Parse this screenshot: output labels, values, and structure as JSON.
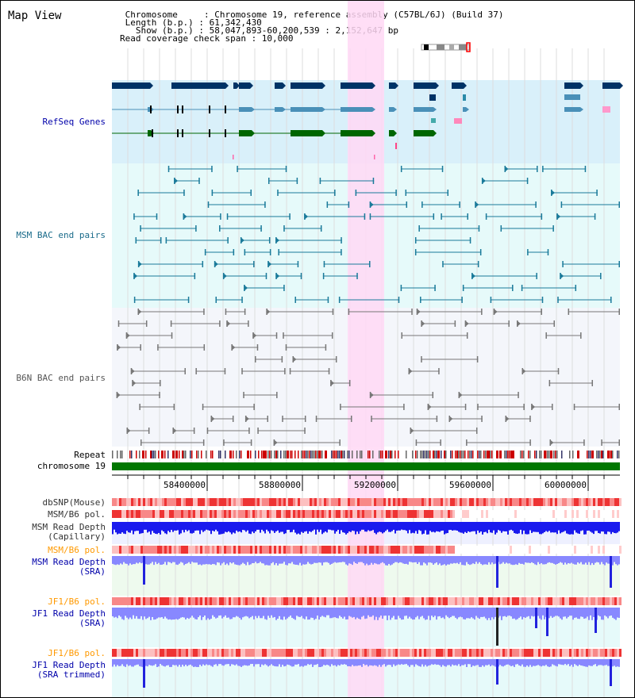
{
  "header": {
    "title": "Map View",
    "info_lines": [
      " Chromosome     : Chromosome 19, reference assembly (C57BL/6J) (Build 37)",
      " Length (b.p.) : 61,342,430",
      "   Show (b.p.) : 58,047,893-60,200,539 : 2,152,647 bp",
      "Read coverage check span : 10,000"
    ]
  },
  "tracks": {
    "refseq": "RefSeq Genes",
    "msm_bac": "MSM BAC end pairs",
    "b6n_bac": "B6N BAC end pairs",
    "repeat": "Repeat",
    "chromosome": "chromosome 19",
    "dbsnp": "dbSNP(Mouse)",
    "msm_b6_pol_1": "MSM/B6 pol.",
    "msm_read_depth_cap": "MSM Read Depth\n(Capillary)",
    "msm_b6_pol_2": "MSM/B6 pol.",
    "msm_read_depth_sra": "MSM Read Depth\n(SRA)",
    "jf1_b6_pol_1": "JF1/B6 pol.",
    "jf1_read_depth_sra": "JF1 Read Depth\n(SRA)",
    "jf1_b6_pol_2": "JF1/B6 pol.",
    "jf1_read_depth_trim": "JF1 Read Depth\n(SRA trimmed)"
  },
  "axis": {
    "ticks": [
      "58400000",
      "58800000",
      "59200000",
      "59600000",
      "60000000"
    ]
  },
  "colors": {
    "refseq_bg": "#d9f0fa",
    "msm_bg": "#e6fafa",
    "b6n_bg": "#f4f6fb",
    "highlight": "#ffd8f4",
    "gene_dark": "#003366",
    "gene_mid": "#4a90b8",
    "gene_green": "#006600",
    "msm_line": "#1a7a9a",
    "b6n_line": "#777777",
    "chrom_green": "#007700",
    "depth_dark": "#0000ff",
    "depth_light": "#8888ff",
    "label_blue": "#0000aa",
    "label_orange": "#ff9900"
  }
}
